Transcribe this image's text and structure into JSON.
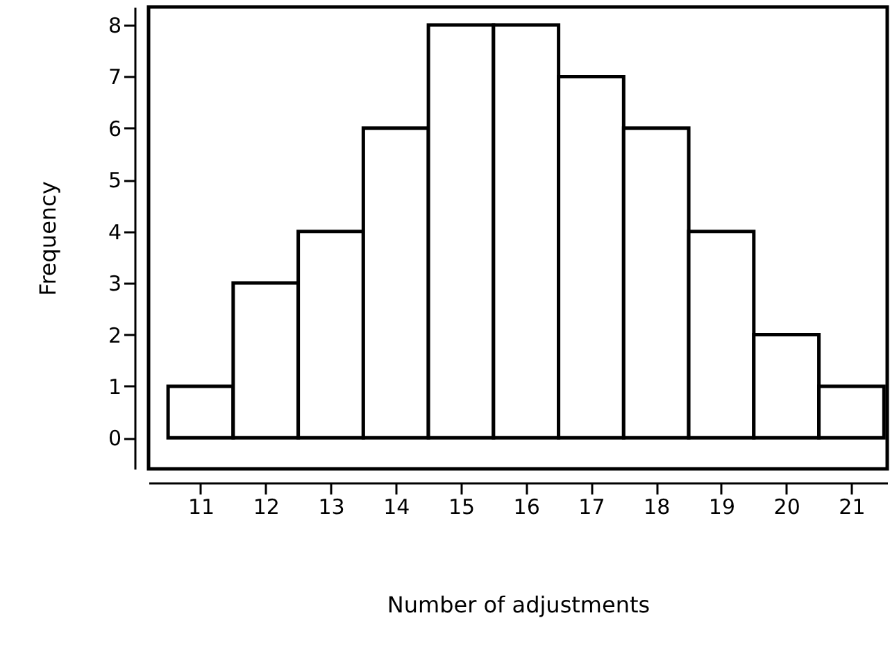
{
  "chart_data": {
    "type": "histogram",
    "xlabel": "Number of adjustments",
    "ylabel": "Frequency",
    "bins": [
      10.5,
      11.5,
      12.5,
      13.5,
      14.5,
      15.5,
      16.5,
      17.5,
      18.5,
      19.5,
      20.5,
      21.5
    ],
    "values": [
      1,
      3,
      4,
      6,
      8,
      8,
      7,
      6,
      4,
      2,
      1
    ],
    "color": "#ffffff",
    "xlim": [
      10.2,
      21.55
    ],
    "ylim": [
      -0.6,
      8.35
    ],
    "xticks": [
      11,
      12,
      13,
      14,
      15,
      16,
      17,
      18,
      19,
      20,
      21
    ],
    "yticks": [
      0,
      1,
      2,
      3,
      4,
      5,
      6,
      7,
      8
    ],
    "grid": false
  }
}
